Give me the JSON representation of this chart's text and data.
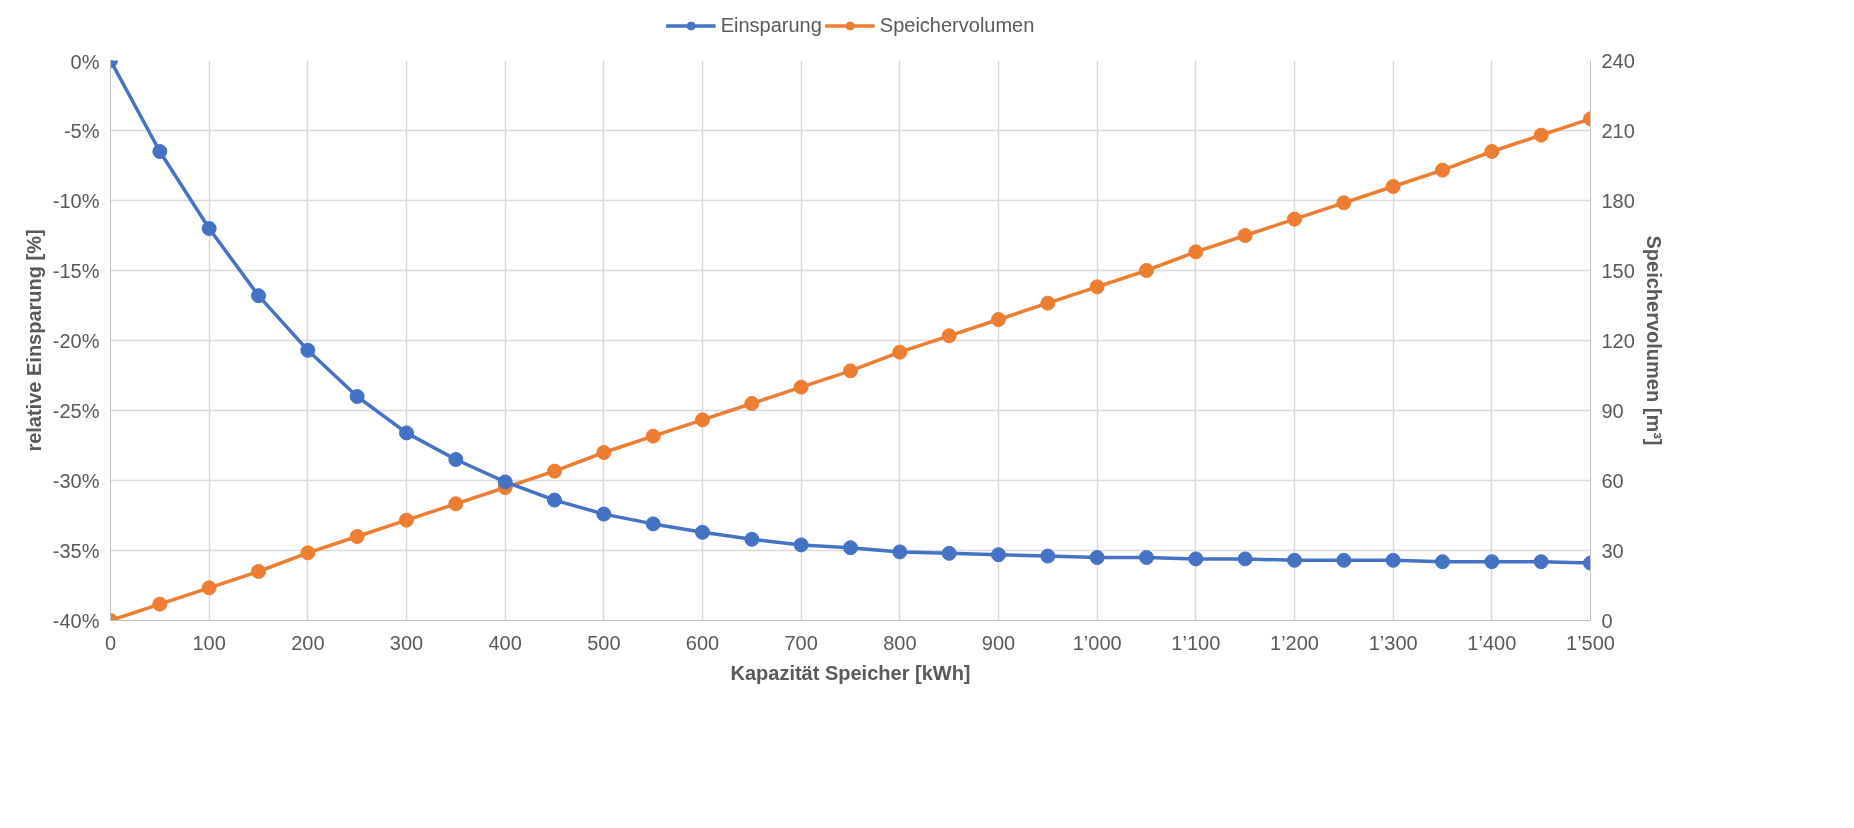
{
  "chart_data": {
    "type": "line",
    "xlabel": "Kapazität Speicher [kWh]",
    "ylabel": "relative Einsparung [%]",
    "y2label": "Speichervolumen [m³]",
    "x": [
      0,
      50,
      100,
      150,
      200,
      250,
      300,
      350,
      400,
      450,
      500,
      550,
      600,
      650,
      700,
      750,
      800,
      850,
      900,
      950,
      1000,
      1050,
      1100,
      1150,
      1200,
      1250,
      1300,
      1350,
      1400,
      1450,
      1500
    ],
    "series": [
      {
        "name": "Einsparung",
        "color": "#4472c4",
        "values": [
          0,
          -6.5,
          -12,
          -16.8,
          -20.7,
          -24,
          -26.6,
          -28.5,
          -30.1,
          -31.4,
          -32.4,
          -33.1,
          -33.7,
          -34.2,
          -34.6,
          -34.8,
          -35.1,
          -35.2,
          -35.3,
          -35.4,
          -35.5,
          -35.5,
          -35.6,
          -35.6,
          -35.7,
          -35.7,
          -35.7,
          -35.8,
          -35.8,
          -35.8,
          -35.9
        ]
      },
      {
        "name": "Speichervolumen",
        "color": "#ed7d31",
        "axis": "y2",
        "values": [
          0,
          7,
          14,
          21,
          29,
          36,
          43,
          50,
          57,
          64,
          72,
          79,
          86,
          93,
          100,
          107,
          115,
          122,
          129,
          136,
          143,
          150,
          158,
          165,
          172,
          179,
          186,
          193,
          201,
          208,
          215
        ]
      }
    ],
    "xlim": [
      0,
      1500
    ],
    "xticks": [
      0,
      100,
      200,
      300,
      400,
      500,
      600,
      700,
      800,
      900,
      {
        "value": 1000,
        "label": "1’000"
      },
      {
        "value": 1100,
        "label": "1’100"
      },
      {
        "value": 1200,
        "label": "1’200"
      },
      {
        "value": 1300,
        "label": "1’300"
      },
      {
        "value": 1400,
        "label": "1’400"
      },
      {
        "value": 1500,
        "label": "1’500"
      }
    ],
    "ylim": [
      -40,
      0
    ],
    "yticks": [
      {
        "value": -40,
        "label": "-40%"
      },
      {
        "value": -35,
        "label": "-35%"
      },
      {
        "value": -30,
        "label": "-30%"
      },
      {
        "value": -25,
        "label": "-25%"
      },
      {
        "value": -20,
        "label": "-20%"
      },
      {
        "value": -15,
        "label": "-15%"
      },
      {
        "value": -10,
        "label": "-10%"
      },
      {
        "value": -5,
        "label": "-5%"
      },
      {
        "value": 0,
        "label": "0%"
      }
    ],
    "y2lim": [
      0,
      240
    ],
    "y2ticks": [
      0,
      30,
      60,
      90,
      120,
      150,
      180,
      210,
      240
    ],
    "grid": true,
    "legend": "top",
    "marker": "circle",
    "line_style": "solid"
  }
}
